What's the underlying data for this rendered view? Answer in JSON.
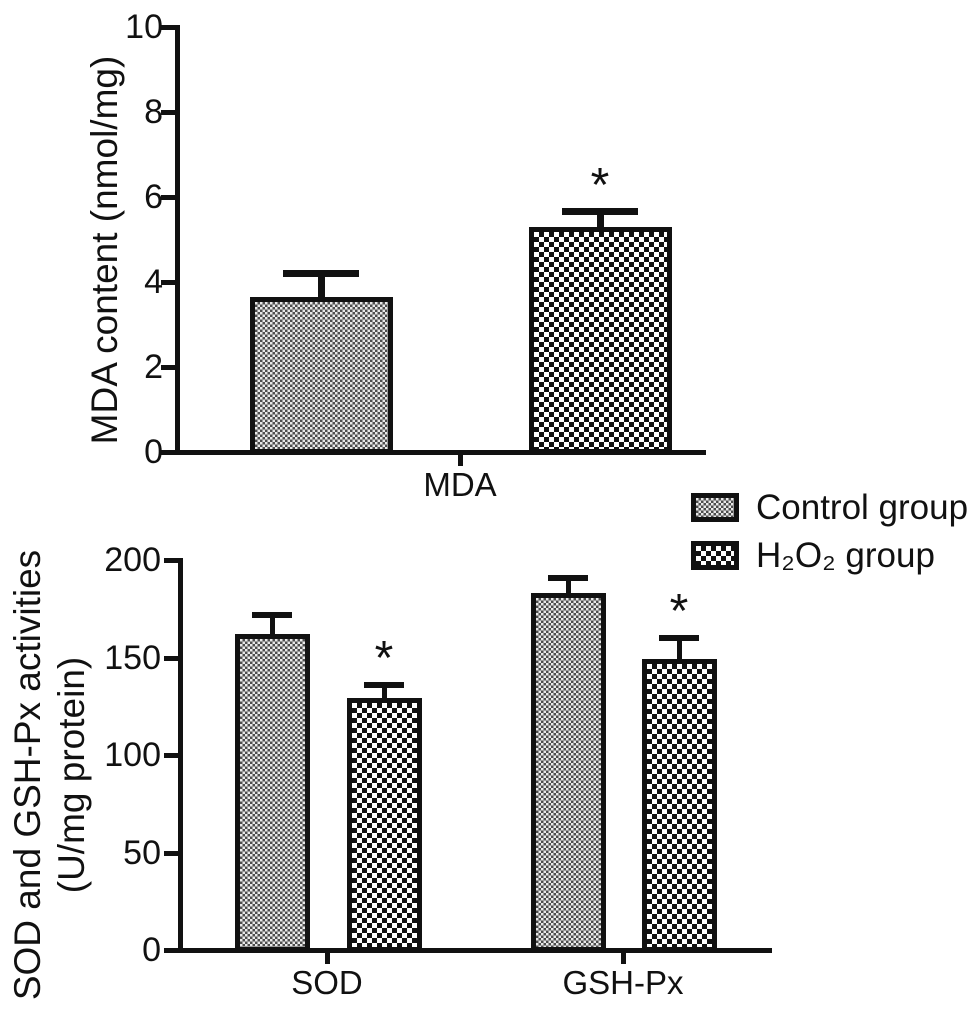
{
  "figure": {
    "background_color": "#ffffff",
    "ink_color": "#111111",
    "significance_note": "*"
  },
  "legend": {
    "position": "right-middle-between-charts",
    "items": [
      {
        "label": "Control group",
        "pattern_key": "control",
        "pattern_description": "fine-stipple-checker"
      },
      {
        "label": "H₂O₂ group",
        "pattern_key": "h2o2",
        "pattern_description": "coarse-checkerboard"
      }
    ]
  },
  "chart_data": [
    {
      "type": "bar",
      "title": "",
      "xlabel": "",
      "ylabel": "MDA content (nmol/mg)",
      "ylim": [
        0,
        10
      ],
      "yticks": [
        0,
        2,
        4,
        6,
        8,
        10
      ],
      "grid": false,
      "categories": [
        "MDA"
      ],
      "significance_marker": "*",
      "series": [
        {
          "name": "Control group",
          "pattern_key": "control",
          "values": [
            3.65
          ],
          "errors": [
            0.55
          ],
          "significant": [
            false
          ]
        },
        {
          "name": "H₂O₂ group",
          "pattern_key": "h2o2",
          "values": [
            5.3
          ],
          "errors": [
            0.35
          ],
          "significant": [
            true
          ]
        }
      ]
    },
    {
      "type": "bar",
      "title": "",
      "xlabel": "",
      "ylabel": "SOD and GSH-Px activities (U/mg protein)",
      "ylabel_lines": [
        "SOD and GSH-Px activities",
        "(U/mg protein)"
      ],
      "ylim": [
        0,
        200
      ],
      "yticks": [
        0,
        50,
        100,
        150,
        200
      ],
      "grid": false,
      "categories": [
        "SOD",
        "GSH-Px"
      ],
      "significance_marker": "*",
      "series": [
        {
          "name": "Control group",
          "pattern_key": "control",
          "values": [
            162,
            183
          ],
          "errors": [
            10,
            8
          ],
          "significant": [
            false,
            false
          ]
        },
        {
          "name": "H₂O₂ group",
          "pattern_key": "h2o2",
          "values": [
            129,
            149
          ],
          "errors": [
            7,
            11
          ],
          "significant": [
            true,
            true
          ]
        }
      ]
    }
  ]
}
